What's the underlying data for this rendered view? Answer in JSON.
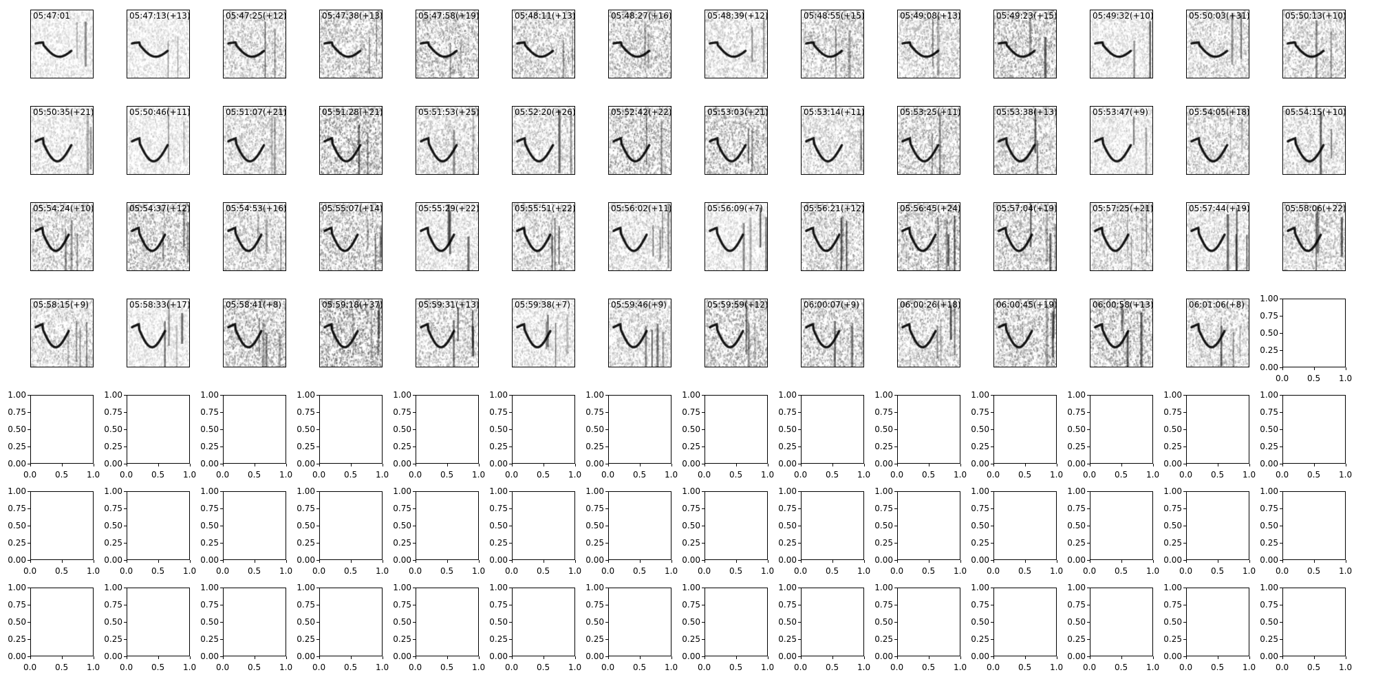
{
  "chart_data": {
    "type": "spectrogram-grid",
    "grid": {
      "rows": 7,
      "cols": 14
    },
    "colormap": "gray_r",
    "panels": [
      "05:47:01",
      "05:47:13(+13)",
      "05:47:25(+12)",
      "05:47:38(+13)",
      "05:47:58(+19)",
      "05:48:11(+13)",
      "05:48:27(+16)",
      "05:48:39(+12)",
      "05:48:55(+15)",
      "05:49:08(+13)",
      "05:49:23(+15)",
      "05:49:32(+10)",
      "05:50:03(+31)",
      "05:50:13(+10)",
      "05:50:35(+21)",
      "05:50:46(+11)",
      "05:51:07(+21)",
      "05:51:28(+21)",
      "05:51:53(+25)",
      "05:52:20(+26)",
      "05:52:42(+22)",
      "05:53:03(+21)",
      "05:53:14(+11)",
      "05:53:25(+11)",
      "05:53:38(+13)",
      "05:53:47(+9)",
      "05:54:05(+18)",
      "05:54:15(+10)",
      "05:54:24(+10)",
      "05:54:37(+12)",
      "05:54:53(+16)",
      "05:55:07(+14)",
      "05:55:29(+22)",
      "05:55:51(+22)",
      "05:56:02(+11)",
      "05:56:09(+7)",
      "05:56:21(+12)",
      "05:56:45(+24)",
      "05:57:04(+19)",
      "05:57:25(+21)",
      "05:57:44(+19)",
      "05:58:06(+22)",
      "05:58:15(+9)",
      "05:58:33(+17)",
      "05:58:41(+8)",
      "05:59:18(+37)",
      "05:59:31(+13)",
      "05:59:38(+7)",
      "05:59:46(+9)",
      "05:59:59(+12)",
      "06:00:07(+9)",
      "06:00:26(+18)",
      "06:00:45(+19)",
      "06:00:58(+13)",
      "06:01:06(+8)"
    ],
    "empty_axes": {
      "xlim": [
        0,
        1
      ],
      "ylim": [
        0,
        1
      ],
      "xticks": [
        "0.0",
        "0.5",
        "1.0"
      ],
      "yticks": [
        "0.00",
        "0.25",
        "0.50",
        "0.75",
        "1.00"
      ]
    }
  }
}
